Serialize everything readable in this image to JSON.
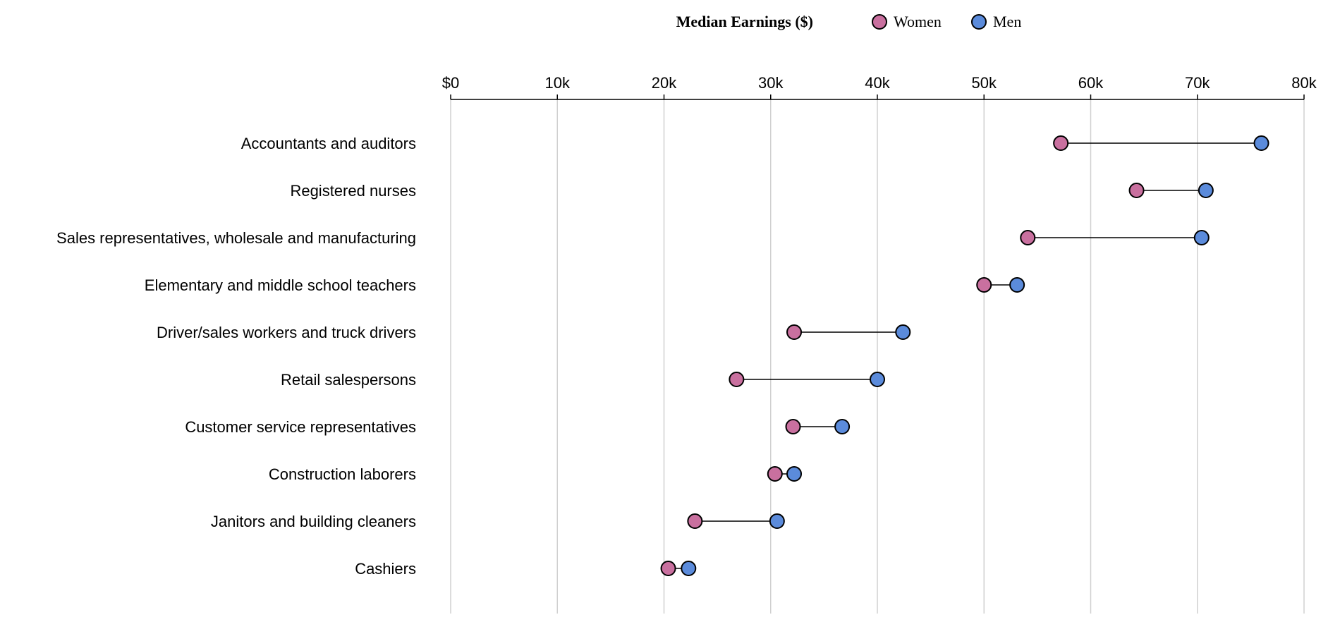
{
  "chart_data": {
    "type": "dumbbell",
    "title": "Median Earnings ($)",
    "legend": {
      "position": "top-center",
      "entries": [
        {
          "name": "Women",
          "color": "#c9709f"
        },
        {
          "name": "Men",
          "color": "#5b8bdb"
        }
      ]
    },
    "x_axis": {
      "position": "top",
      "range": [
        0,
        80000
      ],
      "ticks": [
        0,
        10000,
        20000,
        30000,
        40000,
        50000,
        60000,
        70000,
        80000
      ],
      "tick_labels": [
        "$0",
        "10k",
        "20k",
        "30k",
        "40k",
        "50k",
        "60k",
        "70k",
        "80k"
      ],
      "grid": true
    },
    "categories": [
      "Accountants and auditors",
      "Registered nurses",
      "Sales representatives, wholesale and manufacturing",
      "Elementary and middle school teachers",
      "Driver/sales workers and truck drivers",
      "Retail salespersons",
      "Customer service representatives",
      "Construction laborers",
      "Janitors and building cleaners",
      "Cashiers"
    ],
    "series": [
      {
        "name": "Women",
        "color": "#c9709f",
        "values": [
          57200,
          64300,
          54100,
          50000,
          32200,
          26800,
          32100,
          30400,
          22900,
          20400
        ]
      },
      {
        "name": "Men",
        "color": "#5b8bdb",
        "values": [
          76000,
          70800,
          70400,
          53100,
          42400,
          40000,
          36700,
          32200,
          30600,
          22300
        ]
      }
    ]
  }
}
